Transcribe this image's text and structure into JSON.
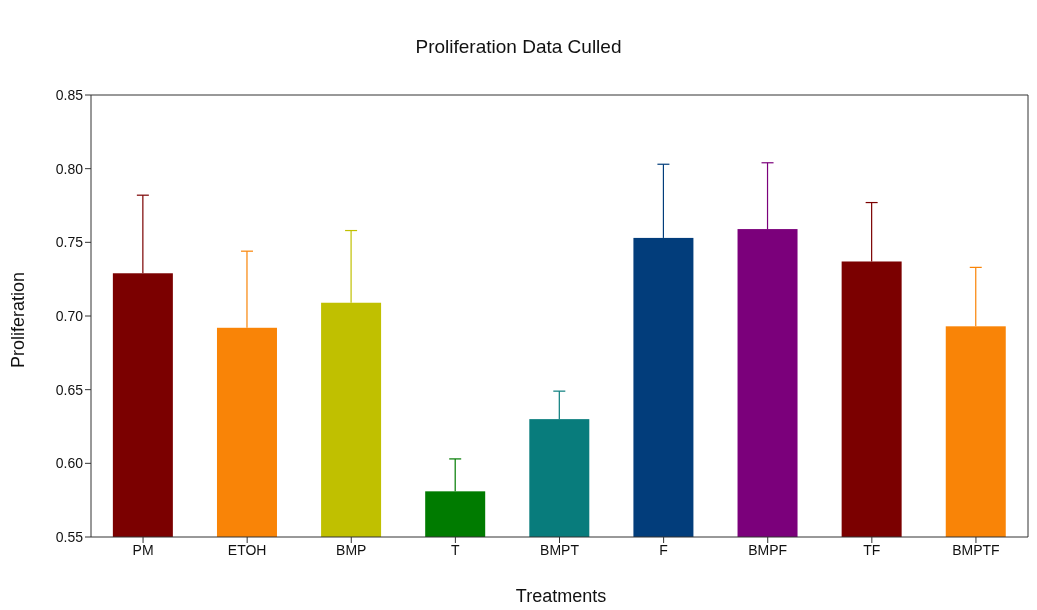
{
  "chart_data": {
    "type": "bar",
    "title": "Proliferation Data Culled",
    "xlabel": "Treatments",
    "ylabel": "Proliferation",
    "categories": [
      "PM",
      "ETOH",
      "BMP",
      "T",
      "BMPT",
      "F",
      "BMPF",
      "TF",
      "BMPTF"
    ],
    "values": [
      0.729,
      0.692,
      0.709,
      0.581,
      0.63,
      0.753,
      0.759,
      0.737,
      0.693
    ],
    "errors": [
      [
        0.729,
        0.782
      ],
      [
        0.692,
        0.744
      ],
      [
        0.709,
        0.758
      ],
      [
        0.581,
        0.603
      ],
      [
        0.63,
        0.649
      ],
      [
        0.753,
        0.803
      ],
      [
        0.759,
        0.804
      ],
      [
        0.737,
        0.777
      ],
      [
        0.693,
        0.733
      ]
    ],
    "colors": [
      "#7b0000",
      "#f98407",
      "#c0c000",
      "#007b00",
      "#087c7c",
      "#023d7b",
      "#7b007b",
      "#7b0000",
      "#f98407"
    ],
    "ylim": [
      0.55,
      0.85
    ],
    "yticks": [
      {
        "value": 0.55,
        "label": "0.55"
      },
      {
        "value": 0.6,
        "label": "0.60"
      },
      {
        "value": 0.65,
        "label": "0.65"
      },
      {
        "value": 0.7,
        "label": "0.70"
      },
      {
        "value": 0.75,
        "label": "0.75"
      },
      {
        "value": 0.8,
        "label": "0.80"
      },
      {
        "value": 0.85,
        "label": "0.85"
      }
    ]
  }
}
